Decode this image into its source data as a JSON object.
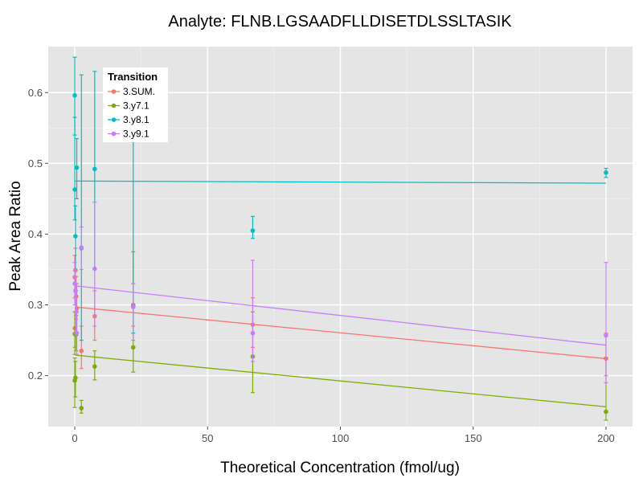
{
  "chart_data": {
    "type": "scatter",
    "title": "Analyte: FLNB.LGSAADFLLDISETDLSSLTASIK",
    "xlabel": "Theoretical Concentration (fmol/ug)",
    "ylabel": "Peak Area Ratio",
    "xlim": [
      -10,
      210
    ],
    "ylim": [
      0.128,
      0.665
    ],
    "x_ticks": [
      0,
      50,
      100,
      150,
      200
    ],
    "y_ticks": [
      0.2,
      0.3,
      0.4,
      0.5,
      0.6
    ],
    "x_tick_labels": [
      "0",
      "50",
      "100",
      "150",
      "200"
    ],
    "y_tick_labels": [
      "0.2",
      "0.3",
      "0.4",
      "0.5",
      "0.6"
    ],
    "grid": true,
    "legend": {
      "title": "Transition",
      "position": "top-left"
    },
    "series": [
      {
        "name": "3.SUM.",
        "color": "#F8766D",
        "points": [
          {
            "x": 0,
            "y": 0.339,
            "lo": 0.31,
            "hi": 0.37
          },
          {
            "x": 0,
            "y": 0.267,
            "lo": 0.24,
            "hi": 0.29
          },
          {
            "x": 0.25,
            "y": 0.349,
            "lo": 0.32,
            "hi": 0.38
          },
          {
            "x": 0.5,
            "y": 0.312,
            "lo": 0.28,
            "hi": 0.34
          },
          {
            "x": 0.75,
            "y": 0.295,
            "lo": 0.26,
            "hi": 0.33
          },
          {
            "x": 2.5,
            "y": 0.235,
            "lo": 0.21,
            "hi": 0.27
          },
          {
            "x": 7.5,
            "y": 0.284,
            "lo": 0.25,
            "hi": 0.32
          },
          {
            "x": 22,
            "y": 0.3,
            "lo": 0.27,
            "hi": 0.33
          },
          {
            "x": 67,
            "y": 0.272,
            "lo": 0.24,
            "hi": 0.31
          },
          {
            "x": 200,
            "y": 0.224,
            "lo": 0.2,
            "hi": 0.26
          }
        ],
        "fit": {
          "x": [
            0,
            200
          ],
          "y": [
            0.297,
            0.224
          ]
        }
      },
      {
        "name": "3.y7.1",
        "color": "#7CAE00",
        "points": [
          {
            "x": 0,
            "y": 0.193,
            "lo": 0.155,
            "hi": 0.225
          },
          {
            "x": 0,
            "y": 0.259,
            "lo": 0.23,
            "hi": 0.29
          },
          {
            "x": 0.25,
            "y": 0.197,
            "lo": 0.17,
            "hi": 0.22
          },
          {
            "x": 0.5,
            "y": 0.258,
            "lo": 0.235,
            "hi": 0.285
          },
          {
            "x": 2.5,
            "y": 0.154,
            "lo": 0.147,
            "hi": 0.165
          },
          {
            "x": 7.5,
            "y": 0.213,
            "lo": 0.194,
            "hi": 0.235
          },
          {
            "x": 22,
            "y": 0.24,
            "lo": 0.205,
            "hi": 0.375
          },
          {
            "x": 67,
            "y": 0.227,
            "lo": 0.176,
            "hi": 0.29
          },
          {
            "x": 200,
            "y": 0.149,
            "lo": 0.137,
            "hi": 0.225
          }
        ],
        "fit": {
          "x": [
            0,
            200
          ],
          "y": [
            0.229,
            0.156
          ]
        }
      },
      {
        "name": "3.y8.1",
        "color": "#00BFC4",
        "points": [
          {
            "x": 0,
            "y": 0.596,
            "lo": 0.54,
            "hi": 0.65
          },
          {
            "x": 0,
            "y": 0.463,
            "lo": 0.42,
            "hi": 0.565
          },
          {
            "x": 0.25,
            "y": 0.397,
            "lo": 0.35,
            "hi": 0.44
          },
          {
            "x": 0.75,
            "y": 0.494,
            "lo": 0.45,
            "hi": 0.535
          },
          {
            "x": 2.5,
            "y": 0.38,
            "lo": 0.25,
            "hi": 0.625
          },
          {
            "x": 7.5,
            "y": 0.492,
            "lo": 0.35,
            "hi": 0.63
          },
          {
            "x": 22,
            "y": 0.298,
            "lo": 0.26,
            "hi": 0.545
          },
          {
            "x": 67,
            "y": 0.405,
            "lo": 0.394,
            "hi": 0.425
          },
          {
            "x": 200,
            "y": 0.487,
            "lo": 0.48,
            "hi": 0.493
          }
        ],
        "fit": {
          "x": [
            0,
            200
          ],
          "y": [
            0.475,
            0.472
          ]
        }
      },
      {
        "name": "3.y9.1",
        "color": "#C77CFF",
        "points": [
          {
            "x": 0,
            "y": 0.33,
            "lo": 0.3,
            "hi": 0.36
          },
          {
            "x": 0.25,
            "y": 0.32,
            "lo": 0.29,
            "hi": 0.35
          },
          {
            "x": 0.5,
            "y": 0.29,
            "lo": 0.26,
            "hi": 0.32
          },
          {
            "x": 0.75,
            "y": 0.26,
            "lo": 0.23,
            "hi": 0.29
          },
          {
            "x": 2.5,
            "y": 0.381,
            "lo": 0.35,
            "hi": 0.41
          },
          {
            "x": 7.5,
            "y": 0.351,
            "lo": 0.27,
            "hi": 0.445
          },
          {
            "x": 22,
            "y": 0.297,
            "lo": 0.25,
            "hi": 0.33
          },
          {
            "x": 67,
            "y": 0.26,
            "lo": 0.22,
            "hi": 0.363
          },
          {
            "x": 200,
            "y": 0.257,
            "lo": 0.19,
            "hi": 0.36
          }
        ],
        "fit": {
          "x": [
            0,
            200
          ],
          "y": [
            0.327,
            0.243
          ]
        }
      }
    ]
  }
}
